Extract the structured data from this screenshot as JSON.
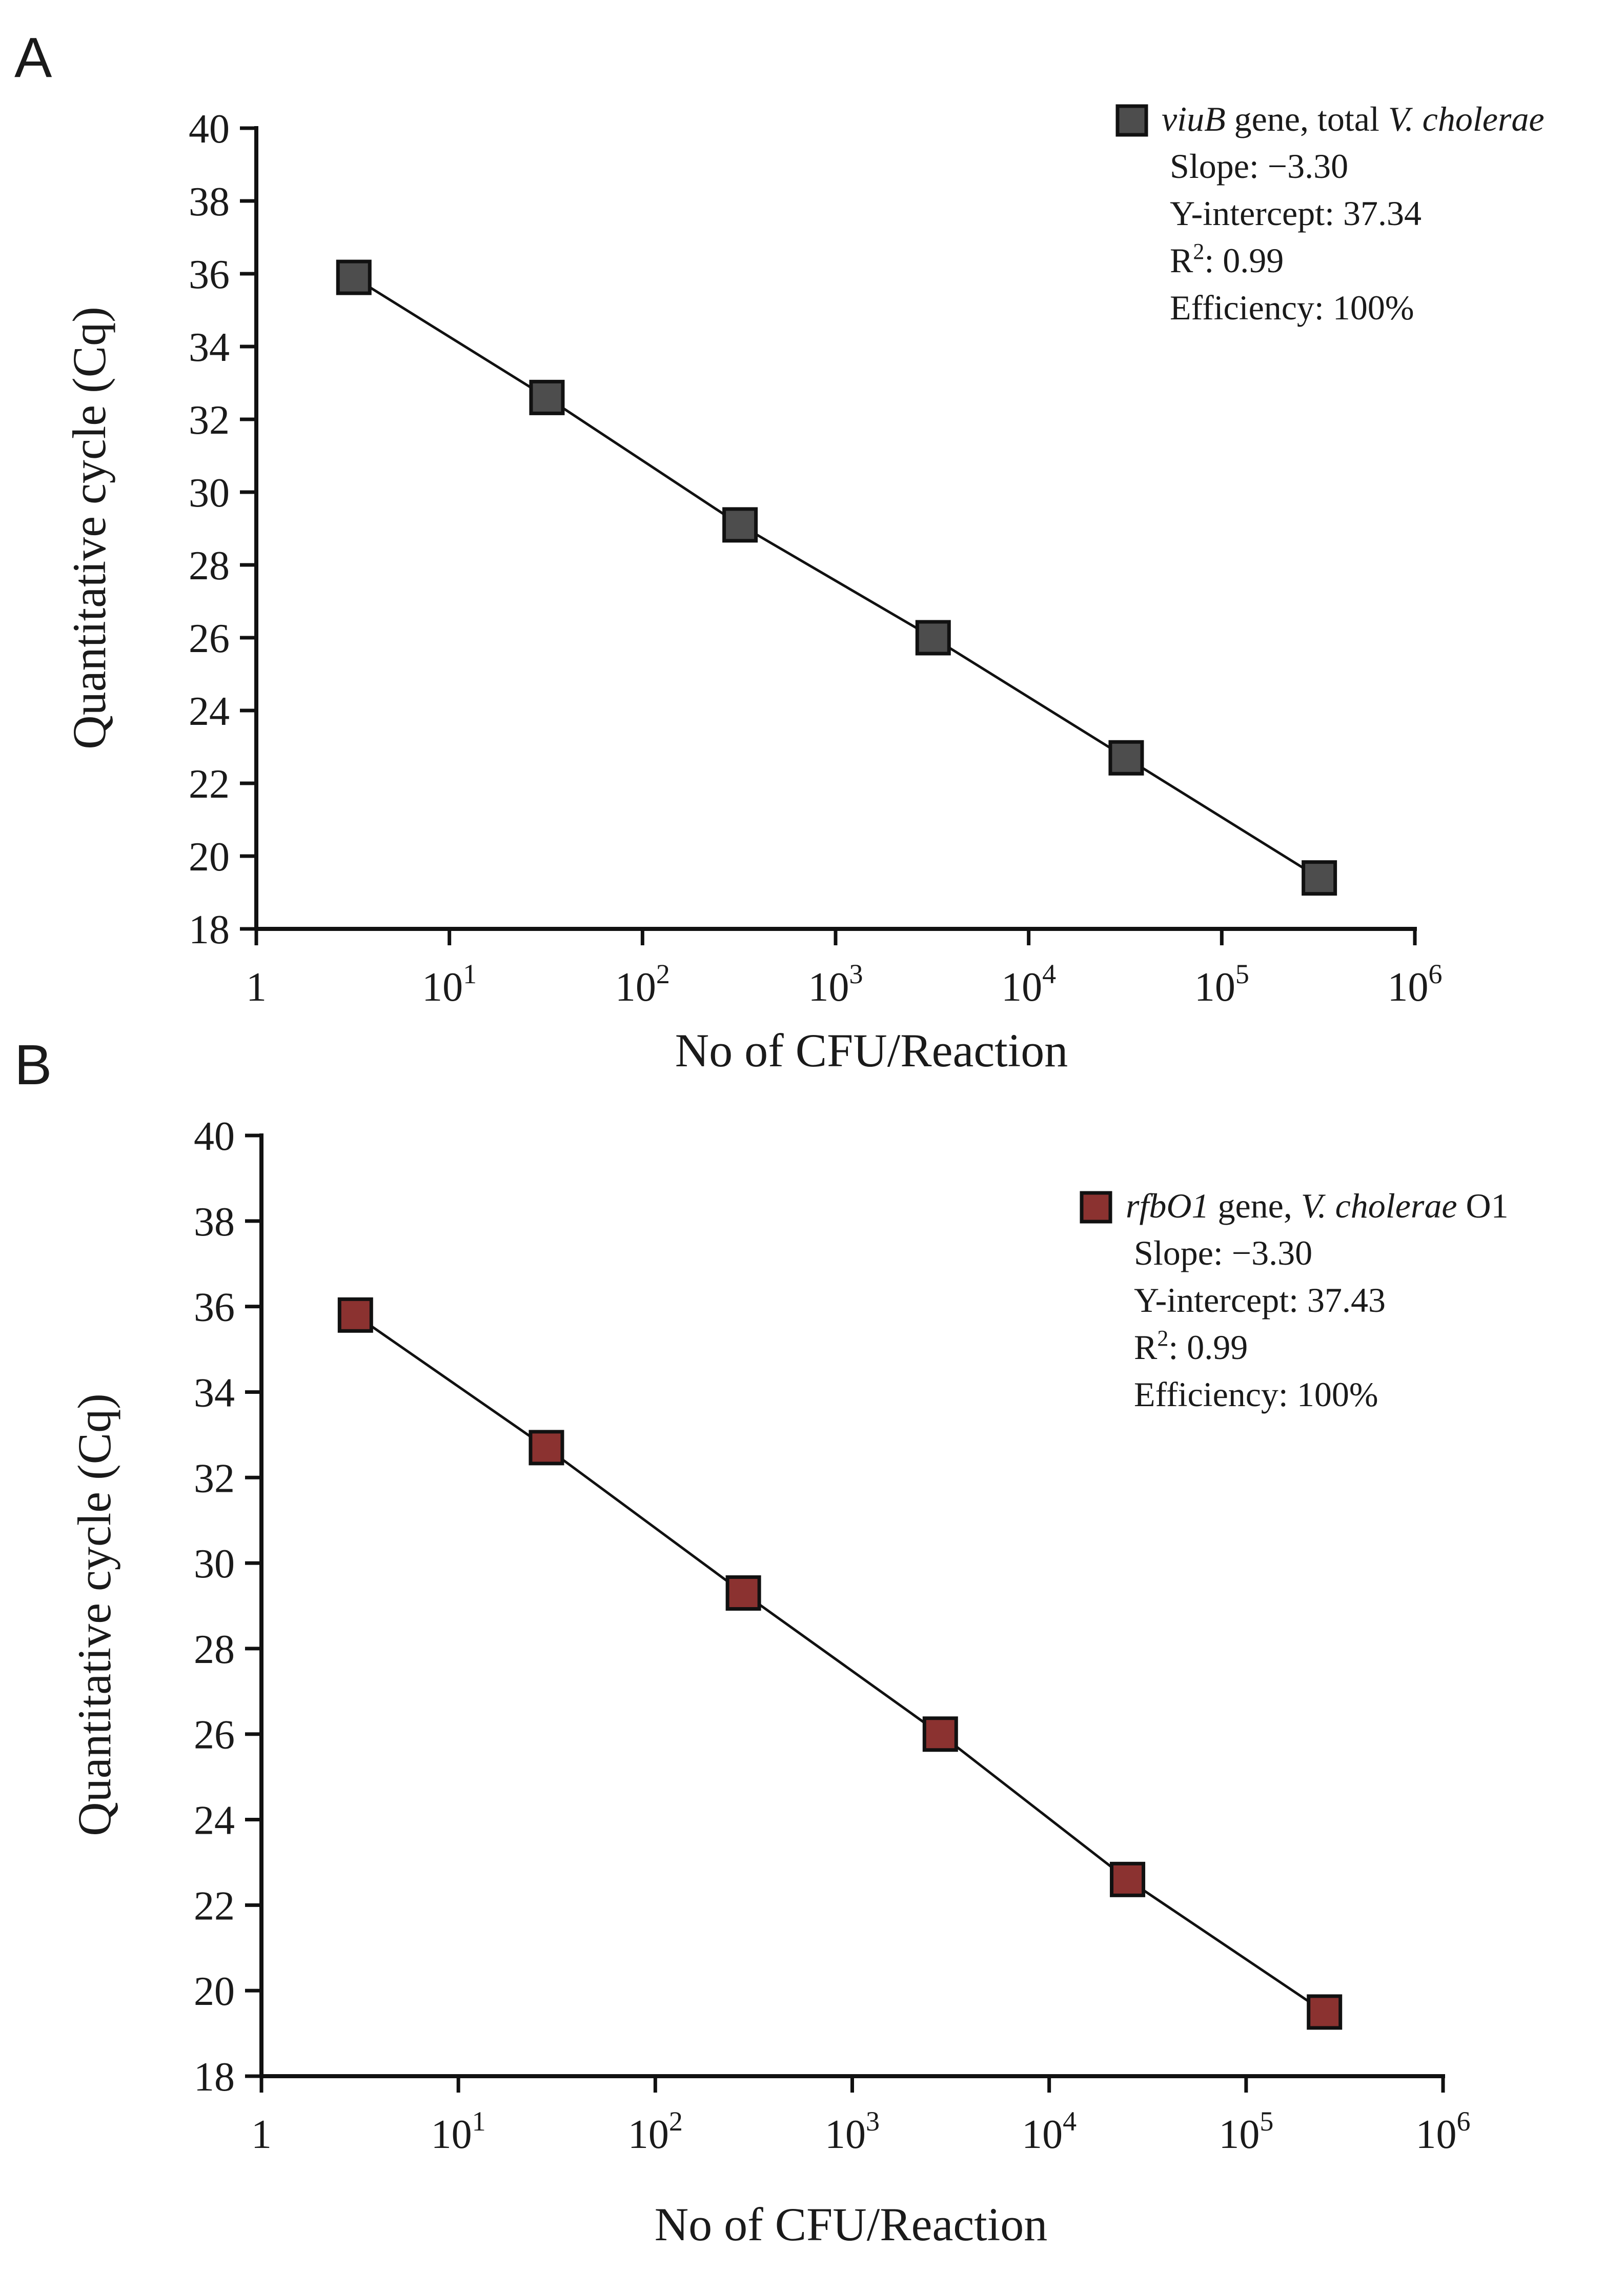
{
  "chart_data": [
    {
      "panel_label": "A",
      "type": "scatter",
      "xscale": "log10",
      "xlabel": "No of CFU/Reaction",
      "ylabel": "Quantitative cycle (Cq)",
      "xlim": [
        1,
        1000000
      ],
      "ylim": [
        18,
        40
      ],
      "xticks": [
        {
          "value": 1,
          "base": "1",
          "exp": ""
        },
        {
          "value": 10,
          "base": "10",
          "exp": "1"
        },
        {
          "value": 100,
          "base": "10",
          "exp": "2"
        },
        {
          "value": 1000,
          "base": "10",
          "exp": "3"
        },
        {
          "value": 10000,
          "base": "10",
          "exp": "4"
        },
        {
          "value": 100000,
          "base": "10",
          "exp": "5"
        },
        {
          "value": 1000000,
          "base": "10",
          "exp": "6"
        }
      ],
      "yticks": [
        18,
        20,
        22,
        24,
        26,
        28,
        30,
        32,
        34,
        36,
        38,
        40
      ],
      "series": [
        {
          "name": "viuB gene, total V. cholerae",
          "color": "#4d4d4d",
          "x": [
            3.2,
            32,
            320,
            3200,
            32000,
            320000
          ],
          "y": [
            35.9,
            32.6,
            29.1,
            26.0,
            22.7,
            19.4
          ]
        }
      ],
      "legend": {
        "position": "top-right",
        "title_parts": [
          {
            "text": "viuB",
            "italic": true
          },
          {
            "text": " gene, total ",
            "italic": false
          },
          {
            "text": "V. cholerae",
            "italic": true
          }
        ],
        "stats": [
          {
            "label": "Slope: ",
            "value": "−3.30"
          },
          {
            "label": "Y-intercept: ",
            "value": "37.34"
          },
          {
            "label": "R",
            "sup": "2",
            "suffix": ": ",
            "value": "0.99"
          },
          {
            "label": "Efficiency: ",
            "value": "100%"
          }
        ]
      }
    },
    {
      "panel_label": "B",
      "type": "scatter",
      "xscale": "log10",
      "xlabel": "No of CFU/Reaction",
      "ylabel": "Quantitative cycle (Cq)",
      "xlim": [
        1,
        1000000
      ],
      "ylim": [
        18,
        40
      ],
      "xticks": [
        {
          "value": 1,
          "base": "1",
          "exp": ""
        },
        {
          "value": 10,
          "base": "10",
          "exp": "1"
        },
        {
          "value": 100,
          "base": "10",
          "exp": "2"
        },
        {
          "value": 1000,
          "base": "10",
          "exp": "3"
        },
        {
          "value": 10000,
          "base": "10",
          "exp": "4"
        },
        {
          "value": 100000,
          "base": "10",
          "exp": "5"
        },
        {
          "value": 1000000,
          "base": "10",
          "exp": "6"
        }
      ],
      "yticks": [
        18,
        20,
        22,
        24,
        26,
        28,
        30,
        32,
        34,
        36,
        38,
        40
      ],
      "series": [
        {
          "name": "rfbO1 gene, V. cholerae O1",
          "color": "#8b3230",
          "x": [
            3,
            28,
            280,
            2800,
            25000,
            250000
          ],
          "y": [
            35.8,
            32.7,
            29.3,
            26.0,
            22.6,
            19.5
          ]
        }
      ],
      "legend": {
        "position": "top-right",
        "title_parts": [
          {
            "text": "rfbO1",
            "italic": true
          },
          {
            "text": " gene, ",
            "italic": false
          },
          {
            "text": "V. cholerae",
            "italic": true
          },
          {
            "text": " O1",
            "italic": false
          }
        ],
        "stats": [
          {
            "label": "Slope: ",
            "value": "−3.30"
          },
          {
            "label": "Y-intercept: ",
            "value": "37.43"
          },
          {
            "label": "R",
            "sup": "2",
            "suffix": ": ",
            "value": "0.99"
          },
          {
            "label": "Efficiency: ",
            "value": "100%"
          }
        ]
      }
    }
  ]
}
